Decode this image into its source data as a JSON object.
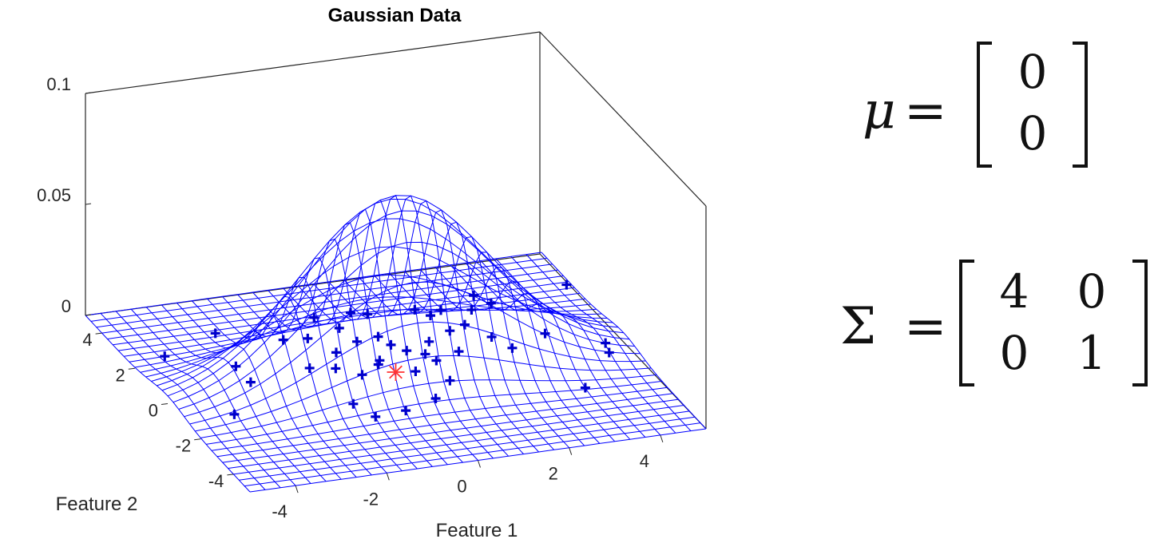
{
  "chart_data": {
    "type": "surface",
    "title": "Gaussian Data",
    "xlabel": "Feature 1",
    "ylabel": "Feature 2",
    "zlabel": "",
    "xlim": [
      -5,
      5
    ],
    "ylim": [
      -5,
      5
    ],
    "zlim": [
      0,
      0.1
    ],
    "x_ticks": [
      "-4",
      "-2",
      "0",
      "2",
      "4"
    ],
    "y_ticks": [
      "-4",
      "-2",
      "0",
      "2",
      "4"
    ],
    "z_ticks": [
      "0",
      "0.05",
      "0.1"
    ],
    "grid": false,
    "surface": {
      "function": "bivariate normal pdf",
      "grid_range": [
        -5,
        5
      ],
      "grid_steps": 31,
      "color": "#0000ff"
    },
    "samples": {
      "marker": "+",
      "color": "#0000cc",
      "points": [
        [
          -3.9,
          -1.0
        ],
        [
          -4.2,
          2.4
        ],
        [
          -3.0,
          1.4
        ],
        [
          -3.0,
          0.5
        ],
        [
          -2.8,
          3.2
        ],
        [
          -1.6,
          0.8
        ],
        [
          -1.1,
          0.6
        ],
        [
          -0.7,
          0.1
        ],
        [
          -1.4,
          -1.3
        ],
        [
          -0.5,
          -2.0
        ],
        [
          -1.2,
          -2.1
        ],
        [
          0.3,
          -1.6
        ],
        [
          0.9,
          -0.8
        ],
        [
          0.4,
          -0.1
        ],
        [
          -0.2,
          0.5
        ],
        [
          -0.8,
          1.4
        ],
        [
          -0.2,
          1.8
        ],
        [
          0.3,
          1.9
        ],
        [
          -0.3,
          2.6
        ],
        [
          -0.6,
          3.3
        ],
        [
          0.2,
          3.3
        ],
        [
          0.5,
          3.1
        ],
        [
          1.5,
          3.0
        ],
        [
          1.7,
          2.6
        ],
        [
          2.0,
          2.8
        ],
        [
          2.6,
          2.6
        ],
        [
          2.9,
          3.3
        ],
        [
          3.1,
          2.8
        ],
        [
          2.2,
          1.9
        ],
        [
          2.5,
          1.1
        ],
        [
          2.7,
          0.4
        ],
        [
          1.6,
          0.6
        ],
        [
          1.0,
          0.3
        ],
        [
          0.9,
          0.7
        ],
        [
          1.2,
          1.3
        ],
        [
          0.6,
          1.0
        ],
        [
          -0.1,
          0.7
        ],
        [
          3.6,
          0.9
        ],
        [
          4.5,
          -0.5
        ],
        [
          4.6,
          0.0
        ],
        [
          3.4,
          -2.1
        ],
        [
          4.9,
          3.2
        ],
        [
          -1.6,
          2.4
        ],
        [
          -1.1,
          2.3
        ],
        [
          0.4,
          1.4
        ],
        [
          1.8,
          1.7
        ]
      ]
    },
    "mean_marker": {
      "marker": "*",
      "color": "#ff3333",
      "x": 0,
      "y": 0
    }
  },
  "equations": {
    "mu_symbol": "μ",
    "equals": "=",
    "mu_values": [
      "0",
      "0"
    ],
    "sigma_symbol": "Σ",
    "sigma_values": [
      [
        "4",
        "0"
      ],
      [
        "0",
        "1"
      ]
    ]
  }
}
